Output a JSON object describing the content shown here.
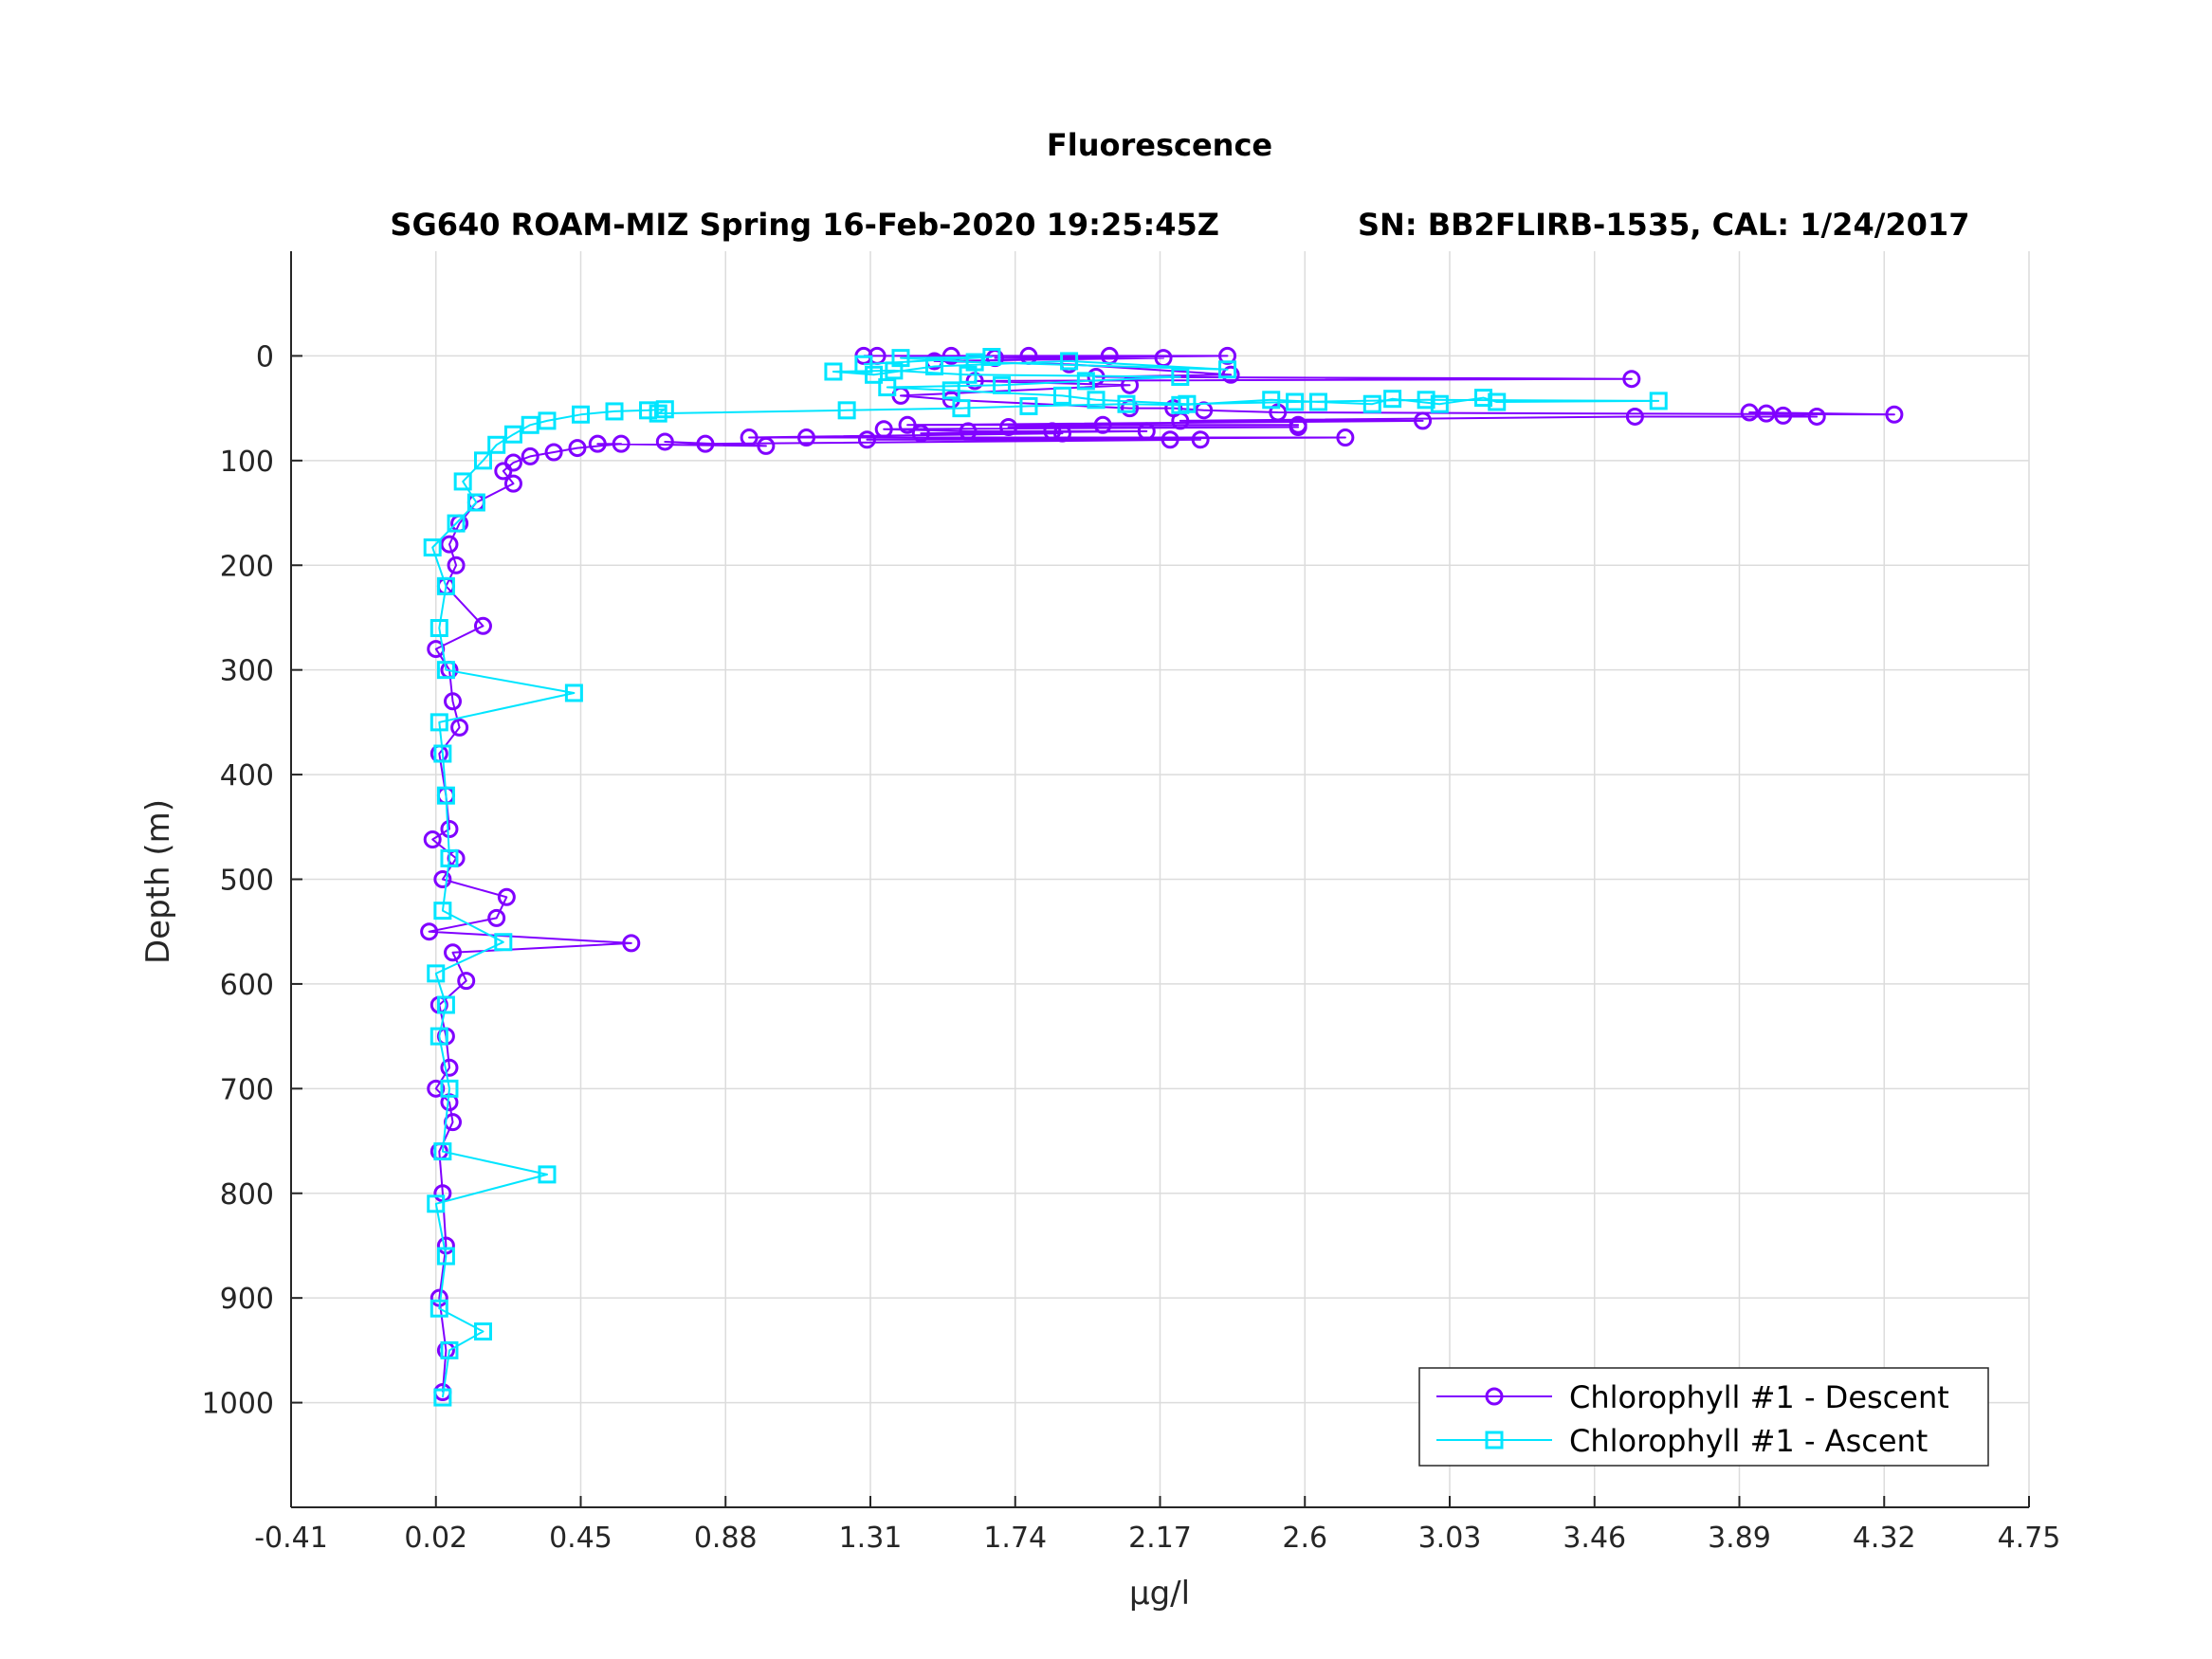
{
  "chart_data": {
    "type": "line",
    "title": "Fluorescence",
    "subtitle_left": "SG640 ROAM-MIZ Spring 16-Feb-2020 19:25:45Z",
    "subtitle_right": "SN: BB2FLIRB-1535, CAL: 1/24/2017",
    "xlabel": "µg/l",
    "ylabel": "Depth (m)",
    "xlim": [
      -0.41,
      4.75
    ],
    "ylim": [
      1100,
      -100
    ],
    "y_reversed": true,
    "grid": true,
    "legend_position": "bottom-right",
    "xticks": [
      "-0.41",
      "0.02",
      "0.45",
      "0.88",
      "1.31",
      "1.74",
      "2.17",
      "2.6",
      "3.03",
      "3.46",
      "3.89",
      "4.32",
      "4.75"
    ],
    "yticks": [
      "0",
      "100",
      "200",
      "300",
      "400",
      "500",
      "600",
      "700",
      "800",
      "900",
      "1000"
    ],
    "series": [
      {
        "name": "Chlorophyll #1 - Descent",
        "color": "#8000ff",
        "marker": "circle",
        "points": [
          [
            1.29,
            0
          ],
          [
            1.33,
            0
          ],
          [
            1.55,
            0
          ],
          [
            1.78,
            0
          ],
          [
            2.02,
            0
          ],
          [
            2.37,
            0
          ],
          [
            1.68,
            2
          ],
          [
            2.18,
            2
          ],
          [
            1.5,
            5
          ],
          [
            1.9,
            8
          ],
          [
            2.38,
            18
          ],
          [
            1.98,
            20
          ],
          [
            3.57,
            22
          ],
          [
            1.62,
            24
          ],
          [
            2.08,
            28
          ],
          [
            1.4,
            38
          ],
          [
            1.55,
            42
          ],
          [
            2.08,
            50
          ],
          [
            2.21,
            50
          ],
          [
            2.3,
            52
          ],
          [
            2.52,
            54
          ],
          [
            4.35,
            56
          ],
          [
            3.92,
            54
          ],
          [
            3.97,
            55
          ],
          [
            4.02,
            57
          ],
          [
            4.12,
            58
          ],
          [
            3.58,
            58
          ],
          [
            2.23,
            62
          ],
          [
            2.95,
            62
          ],
          [
            1.42,
            66
          ],
          [
            2.58,
            66
          ],
          [
            2.0,
            66
          ],
          [
            1.72,
            68
          ],
          [
            2.58,
            68
          ],
          [
            1.35,
            70
          ],
          [
            1.6,
            72
          ],
          [
            1.85,
            72
          ],
          [
            2.13,
            72
          ],
          [
            1.46,
            74
          ],
          [
            1.88,
            74
          ],
          [
            0.95,
            78
          ],
          [
            1.12,
            78
          ],
          [
            2.72,
            78
          ],
          [
            1.3,
            80
          ],
          [
            2.2,
            80
          ],
          [
            2.29,
            80
          ],
          [
            0.82,
            84
          ],
          [
            0.7,
            82
          ],
          [
            1.0,
            86
          ],
          [
            0.5,
            84
          ],
          [
            0.57,
            84
          ],
          [
            0.44,
            88
          ],
          [
            0.37,
            92
          ],
          [
            0.3,
            96
          ],
          [
            0.25,
            102
          ],
          [
            0.22,
            110
          ],
          [
            0.25,
            122
          ],
          [
            0.14,
            140
          ],
          [
            0.09,
            160
          ],
          [
            0.06,
            180
          ],
          [
            0.08,
            200
          ],
          [
            0.05,
            220
          ],
          [
            0.16,
            258
          ],
          [
            0.02,
            280
          ],
          [
            0.06,
            300
          ],
          [
            0.07,
            330
          ],
          [
            0.09,
            355
          ],
          [
            0.03,
            380
          ],
          [
            0.05,
            420
          ],
          [
            0.06,
            452
          ],
          [
            0.01,
            462
          ],
          [
            0.08,
            480
          ],
          [
            0.04,
            500
          ],
          [
            0.23,
            517
          ],
          [
            0.2,
            537
          ],
          [
            0.0,
            550
          ],
          [
            0.6,
            561
          ],
          [
            0.07,
            570
          ],
          [
            0.11,
            597
          ],
          [
            0.03,
            620
          ],
          [
            0.05,
            650
          ],
          [
            0.06,
            680
          ],
          [
            0.02,
            700
          ],
          [
            0.06,
            713
          ],
          [
            0.07,
            732
          ],
          [
            0.03,
            760
          ],
          [
            0.04,
            800
          ],
          [
            0.05,
            850
          ],
          [
            0.03,
            900
          ],
          [
            0.05,
            950
          ],
          [
            0.04,
            990
          ]
        ]
      },
      {
        "name": "Chlorophyll #1 - Ascent",
        "color": "#00e5ff",
        "marker": "square",
        "points": [
          [
            0.04,
            995
          ],
          [
            0.06,
            950
          ],
          [
            0.16,
            932
          ],
          [
            0.03,
            910
          ],
          [
            0.05,
            860
          ],
          [
            0.02,
            810
          ],
          [
            0.35,
            782
          ],
          [
            0.04,
            760
          ],
          [
            0.06,
            700
          ],
          [
            0.03,
            650
          ],
          [
            0.05,
            620
          ],
          [
            0.02,
            590
          ],
          [
            0.22,
            560
          ],
          [
            0.04,
            530
          ],
          [
            0.06,
            480
          ],
          [
            0.05,
            420
          ],
          [
            0.04,
            380
          ],
          [
            0.03,
            350
          ],
          [
            0.43,
            322
          ],
          [
            0.05,
            300
          ],
          [
            0.03,
            260
          ],
          [
            0.05,
            220
          ],
          [
            0.01,
            183
          ],
          [
            0.08,
            160
          ],
          [
            0.14,
            140
          ],
          [
            0.1,
            120
          ],
          [
            0.16,
            100
          ],
          [
            0.2,
            85
          ],
          [
            0.25,
            75
          ],
          [
            0.3,
            66
          ],
          [
            0.35,
            62
          ],
          [
            0.45,
            56
          ],
          [
            0.55,
            53
          ],
          [
            0.65,
            52
          ],
          [
            0.7,
            51
          ],
          [
            0.68,
            55
          ],
          [
            1.24,
            52
          ],
          [
            1.58,
            50
          ],
          [
            1.78,
            48
          ],
          [
            2.07,
            46
          ],
          [
            2.23,
            47
          ],
          [
            2.5,
            42
          ],
          [
            2.64,
            44
          ],
          [
            2.8,
            46
          ],
          [
            2.86,
            41
          ],
          [
            3.0,
            46
          ],
          [
            3.13,
            40
          ],
          [
            3.17,
            44
          ],
          [
            3.65,
            43
          ],
          [
            2.96,
            42
          ],
          [
            2.57,
            44
          ],
          [
            2.25,
            46
          ],
          [
            1.98,
            42
          ],
          [
            1.88,
            38
          ],
          [
            1.55,
            33
          ],
          [
            1.36,
            30
          ],
          [
            1.7,
            28
          ],
          [
            1.95,
            24
          ],
          [
            2.23,
            20
          ],
          [
            1.6,
            18
          ],
          [
            1.38,
            14
          ],
          [
            1.2,
            15
          ],
          [
            1.32,
            18
          ],
          [
            1.5,
            10
          ],
          [
            1.9,
            5
          ],
          [
            2.37,
            13
          ],
          [
            1.62,
            6
          ],
          [
            1.4,
            2
          ],
          [
            1.67,
            1
          ],
          [
            1.29,
            8
          ]
        ]
      }
    ]
  }
}
